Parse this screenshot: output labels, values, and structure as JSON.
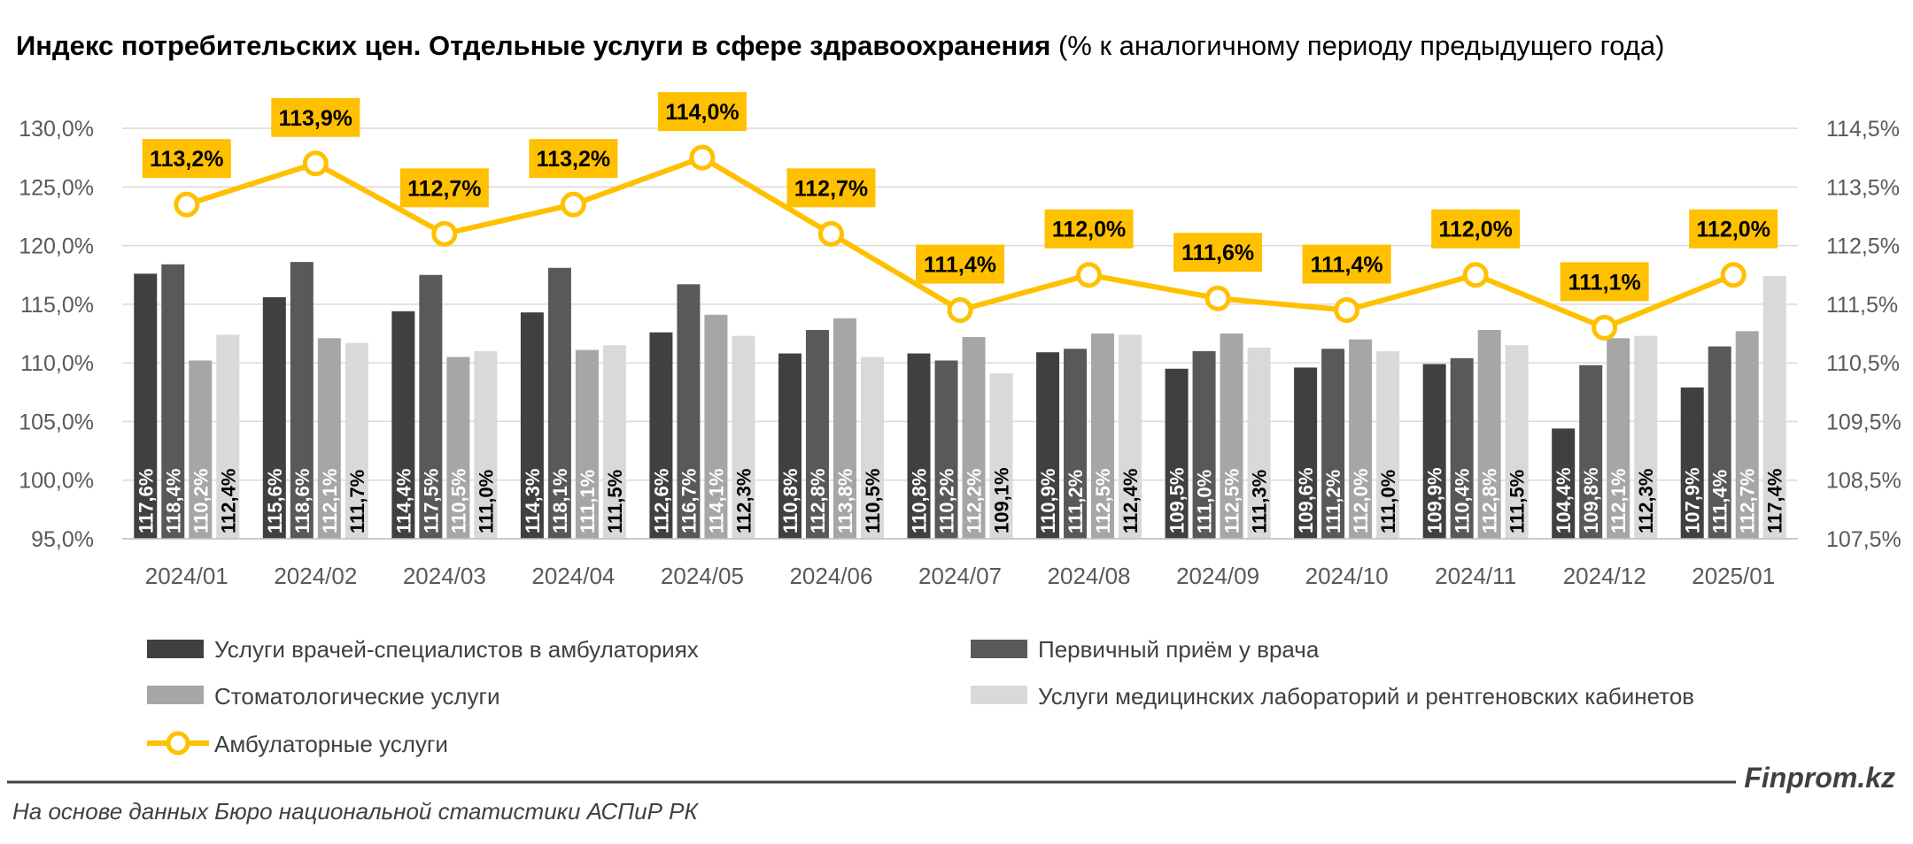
{
  "title": {
    "bold": "Индекс потребительских цен. Отдельные услуги в сфере здравоохранения",
    "normal": " (% к аналогичному периоду предыдущего года)"
  },
  "source": "На основе данных Бюро национальной статистики АСПиР РК",
  "brand": "Finprom.kz",
  "colors": {
    "s1": "#404040",
    "s2": "#595959",
    "s3": "#a6a6a6",
    "s4": "#d9d9d9",
    "line": "#ffc000",
    "axis_text": "#595959",
    "grid": "#d9d9d9"
  },
  "chart_data": {
    "type": "bar",
    "categories": [
      "2024/01",
      "2024/02",
      "2024/03",
      "2024/04",
      "2024/05",
      "2024/06",
      "2024/07",
      "2024/08",
      "2024/09",
      "2024/10",
      "2024/11",
      "2024/12",
      "2025/01"
    ],
    "y_left": {
      "min": 95,
      "max": 130,
      "ticks": [
        "95,0%",
        "100,0%",
        "105,0%",
        "110,0%",
        "115,0%",
        "120,0%",
        "125,0%",
        "130,0%"
      ]
    },
    "y_right": {
      "min": 107.5,
      "max": 114.5,
      "ticks": [
        "107,5%",
        "108,5%",
        "109,5%",
        "110,5%",
        "111,5%",
        "112,5%",
        "113,5%",
        "114,5%"
      ]
    },
    "grid": true,
    "legend_position": "bottom",
    "series": [
      {
        "name": "Услуги врачей-специалистов в амбулаториях",
        "values": [
          117.6,
          115.6,
          114.4,
          114.3,
          112.6,
          110.8,
          110.8,
          110.9,
          109.5,
          109.6,
          109.9,
          104.4,
          107.9
        ],
        "labels": [
          "117,6%",
          "115,6%",
          "114,4%",
          "114,3%",
          "112,6%",
          "110,8%",
          "110,8%",
          "110,9%",
          "109,5%",
          "109,6%",
          "109,9%",
          "104,4%",
          "107,9%"
        ]
      },
      {
        "name": "Первичный приём у врача",
        "values": [
          118.4,
          118.6,
          117.5,
          118.1,
          116.7,
          112.8,
          110.2,
          111.2,
          111.0,
          111.2,
          110.4,
          109.8,
          111.4
        ],
        "labels": [
          "118,4%",
          "118,6%",
          "117,5%",
          "118,1%",
          "116,7%",
          "112,8%",
          "110,2%",
          "111,2%",
          "111,0%",
          "111,2%",
          "110,4%",
          "109,8%",
          "111,4%"
        ]
      },
      {
        "name": "Стоматологические услуги",
        "values": [
          110.2,
          112.1,
          110.5,
          111.1,
          114.1,
          113.8,
          112.2,
          112.5,
          112.5,
          112.0,
          112.8,
          112.1,
          112.7
        ],
        "labels": [
          "110,2%",
          "112,1%",
          "110,5%",
          "111,1%",
          "114,1%",
          "113,8%",
          "112,2%",
          "112,5%",
          "112,5%",
          "112,0%",
          "112,8%",
          "112,1%",
          "112,7%"
        ]
      },
      {
        "name": "Услуги медицинских лабораторий и рентгеновских кабинетов",
        "values": [
          112.4,
          111.7,
          111.0,
          111.5,
          112.3,
          110.5,
          109.1,
          112.4,
          111.3,
          111.0,
          111.5,
          112.3,
          117.4
        ],
        "labels": [
          "112,4%",
          "111,7%",
          "111,0%",
          "111,5%",
          "112,3%",
          "110,5%",
          "109,1%",
          "112,4%",
          "111,3%",
          "111,0%",
          "111,5%",
          "112,3%",
          "117,4%"
        ]
      }
    ],
    "line_series": {
      "name": "Амбулаторные услуги",
      "axis": "right",
      "values": [
        113.2,
        113.9,
        112.7,
        113.2,
        114.0,
        112.7,
        111.4,
        112.0,
        111.6,
        111.4,
        112.0,
        111.1,
        112.0
      ],
      "labels": [
        "113,2%",
        "113,9%",
        "112,7%",
        "113,2%",
        "114,0%",
        "112,7%",
        "111,4%",
        "112,0%",
        "111,6%",
        "111,4%",
        "112,0%",
        "111,1%",
        "112,0%"
      ]
    }
  }
}
